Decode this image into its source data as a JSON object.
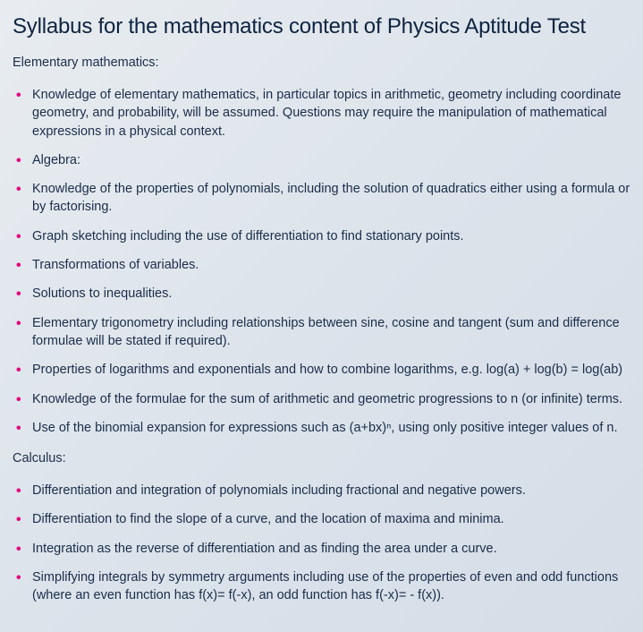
{
  "title": "Syllabus for the mathematics content of Physics Aptitude Test",
  "sections": [
    {
      "label": "Elementary mathematics:",
      "items": [
        "Knowledge of elementary mathematics, in particular topics in arithmetic, geometry including coordinate geometry, and probability, will be assumed. Questions may require the manipulation of mathematical expressions in a physical context.",
        "Algebra:",
        "Knowledge of the properties of polynomials, including the solution of quadratics either using a formula or by factorising.",
        "Graph sketching including the use of differentiation to find stationary points.",
        "Transformations of variables.",
        "Solutions to inequalities.",
        "Elementary trigonometry including relationships between sine, cosine and tangent (sum and difference formulae will be stated if required).",
        "Properties of logarithms and exponentials and how to combine logarithms, e.g. log(a) + log(b) = log(ab)",
        "Knowledge of the formulae for the sum of arithmetic and geometric progressions to n (or infinite) terms.",
        "Use of the binomial expansion for expressions such as (a+bx)ⁿ, using only positive integer values of n."
      ]
    },
    {
      "label": "Calculus:",
      "items": [
        "Differentiation and integration of polynomials including fractional and negative powers.",
        "Differentiation to find the slope of a curve, and the location of maxima and minima.",
        "Integration as the reverse of differentiation and as finding the area under a curve.",
        "Simplifying integrals by symmetry arguments including use of the properties of even and odd functions (where an even function has f(x)= f(-x), an odd function has f(-x)= - f(x))."
      ]
    }
  ],
  "colors": {
    "bullet": "#e6007e",
    "text": "#1a2d4a",
    "heading": "#0d2340",
    "bg_start": "#e8ecf0",
    "bg_end": "#d5dde7"
  },
  "typography": {
    "title_fontsize": 24,
    "body_fontsize": 14.5,
    "font_family": "system-ui, Arial"
  }
}
